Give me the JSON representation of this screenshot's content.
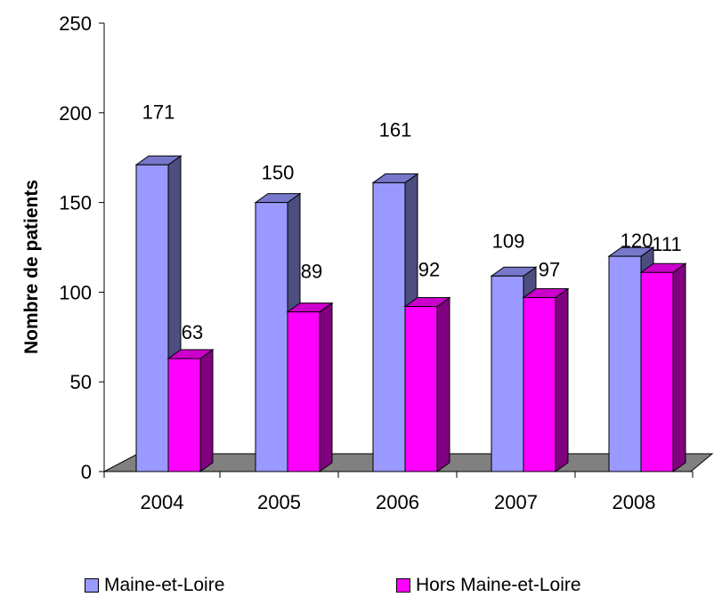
{
  "chart_data": {
    "type": "bar",
    "categories": [
      "2004",
      "2005",
      "2006",
      "2007",
      "2008"
    ],
    "series": [
      {
        "name": "Maine-et-Loire",
        "values": [
          171,
          150,
          161,
          109,
          120
        ],
        "color": "#9999ff",
        "side_color": "#4d4d80",
        "top_color": "#7777cc"
      },
      {
        "name": "Hors Maine-et-Loire",
        "values": [
          63,
          89,
          92,
          97,
          111
        ],
        "color": "#ff00ff",
        "side_color": "#800080",
        "top_color": "#cc00cc"
      }
    ],
    "ylabel": "Nombre de patients",
    "ylim": [
      0,
      250
    ],
    "yticks": [
      "0",
      "50",
      "100",
      "150",
      "200",
      "250"
    ],
    "floor_color": "#808080",
    "legend_position": "bottom"
  }
}
